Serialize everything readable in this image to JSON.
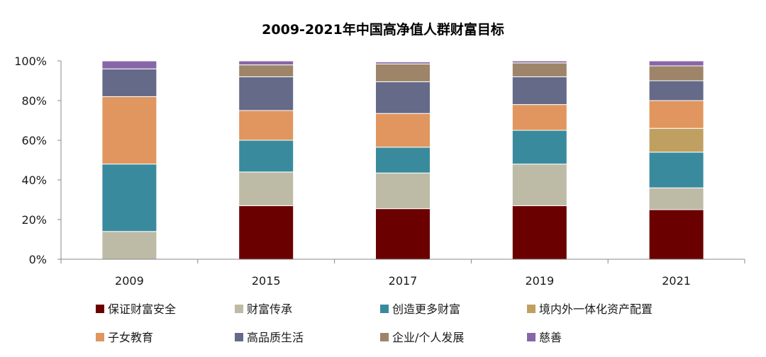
{
  "chart_data": {
    "type": "bar",
    "stacked": true,
    "title": "2009-2021年中国高净值人群财富目标",
    "categories": [
      "2009",
      "2015",
      "2017",
      "2019",
      "2021"
    ],
    "ylim": [
      0,
      100
    ],
    "yticks": [
      "0%",
      "20%",
      "40%",
      "60%",
      "80%",
      "100%"
    ],
    "grid": false,
    "legend_position": "bottom",
    "series": [
      {
        "name": "保证财富安全",
        "color": "#6B0000",
        "values": [
          0,
          27,
          25.5,
          27,
          25
        ]
      },
      {
        "name": "财富传承",
        "color": "#BDBAA6",
        "values": [
          14,
          17,
          18,
          21,
          11
        ]
      },
      {
        "name": "创造更多财富",
        "color": "#3A8A9E",
        "values": [
          34,
          16,
          13,
          17,
          18
        ]
      },
      {
        "name": "境内外一体化资产配置",
        "color": "#BFA060",
        "values": [
          0,
          0,
          0,
          0,
          12
        ]
      },
      {
        "name": "子女教育",
        "color": "#E0965E",
        "values": [
          34,
          15,
          17,
          13,
          14
        ]
      },
      {
        "name": "高品质生活",
        "color": "#646A88",
        "values": [
          14,
          17,
          16,
          14,
          10
        ]
      },
      {
        "name": "企业/个人发展",
        "color": "#9E8468",
        "values": [
          0,
          6,
          9,
          7,
          7.5
        ]
      },
      {
        "name": "慈善",
        "color": "#8766A8",
        "values": [
          4,
          2,
          1,
          1,
          2.5
        ]
      }
    ]
  }
}
